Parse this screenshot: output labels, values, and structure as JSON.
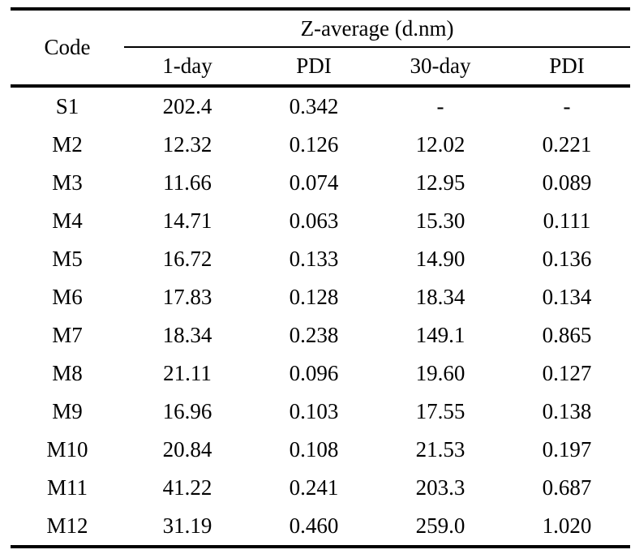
{
  "table": {
    "corner_header": "Code",
    "spanner_header": "Z-average (d.nm)",
    "subheaders": [
      "1-day",
      "PDI",
      "30-day",
      "PDI"
    ],
    "rows": [
      {
        "code": "S1",
        "cells": [
          "202.4",
          "0.342",
          "-",
          "-"
        ]
      },
      {
        "code": "M2",
        "cells": [
          "12.32",
          "0.126",
          "12.02",
          "0.221"
        ]
      },
      {
        "code": "M3",
        "cells": [
          "11.66",
          "0.074",
          "12.95",
          "0.089"
        ]
      },
      {
        "code": "M4",
        "cells": [
          "14.71",
          "0.063",
          "15.30",
          "0.111"
        ]
      },
      {
        "code": "M5",
        "cells": [
          "16.72",
          "0.133",
          "14.90",
          "0.136"
        ]
      },
      {
        "code": "M6",
        "cells": [
          "17.83",
          "0.128",
          "18.34",
          "0.134"
        ]
      },
      {
        "code": "M7",
        "cells": [
          "18.34",
          "0.238",
          "149.1",
          "0.865"
        ]
      },
      {
        "code": "M8",
        "cells": [
          "21.11",
          "0.096",
          "19.60",
          "0.127"
        ]
      },
      {
        "code": "M9",
        "cells": [
          "16.96",
          "0.103",
          "17.55",
          "0.138"
        ]
      },
      {
        "code": "M10",
        "cells": [
          "20.84",
          "0.108",
          "21.53",
          "0.197"
        ]
      },
      {
        "code": "M11",
        "cells": [
          "41.22",
          "0.241",
          "203.3",
          "0.687"
        ]
      },
      {
        "code": "M12",
        "cells": [
          "31.19",
          "0.460",
          "259.0",
          "1.020"
        ]
      }
    ]
  }
}
